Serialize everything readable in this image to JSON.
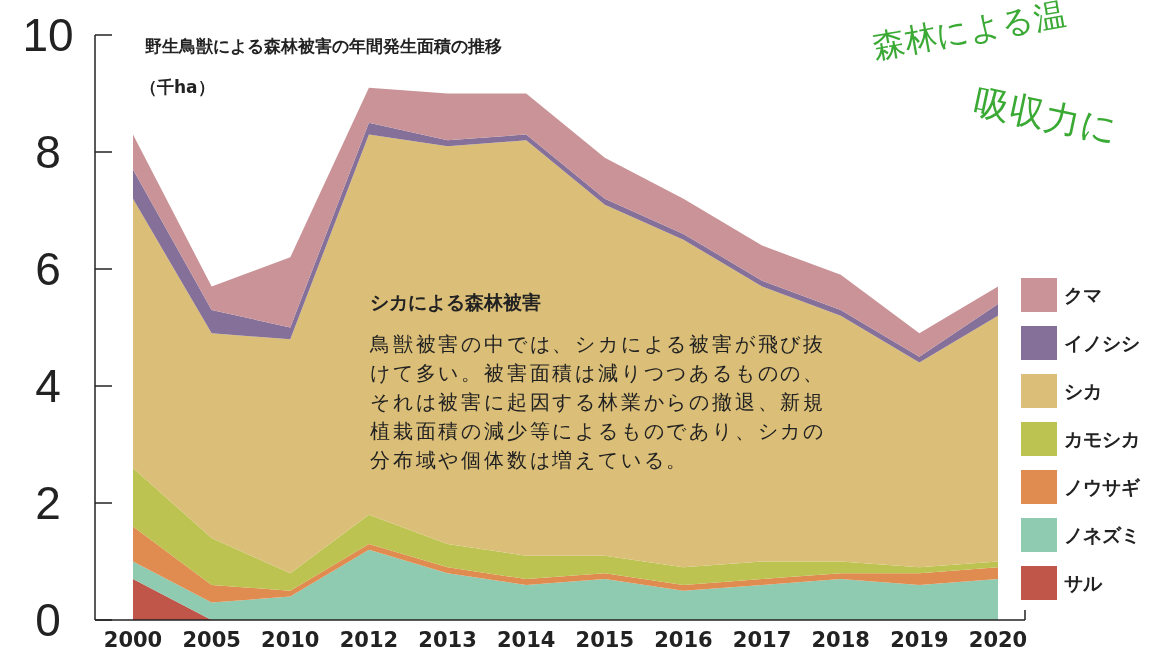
{
  "chart_data": {
    "type": "area",
    "stacked": true,
    "title": "野生鳥獣による森林被害の年間発生面積の推移",
    "ylabel": "（千ha）",
    "categories": [
      "2000",
      "2005",
      "2010",
      "2012",
      "2013",
      "2014",
      "2015",
      "2016",
      "2017",
      "2018",
      "2019",
      "2020"
    ],
    "series": [
      {
        "name": "サル",
        "color": "#c0564a",
        "values": [
          0.7,
          0,
          0,
          0,
          0,
          0,
          0,
          0,
          0,
          0,
          0,
          0
        ]
      },
      {
        "name": "ノネズミ",
        "color": "#8ecbb0",
        "values": [
          0.3,
          0.3,
          0.4,
          1.2,
          0.8,
          0.6,
          0.7,
          0.5,
          0.6,
          0.7,
          0.6,
          0.7
        ]
      },
      {
        "name": "ノウサギ",
        "color": "#e08b50",
        "values": [
          0.6,
          0.3,
          0.1,
          0.1,
          0.1,
          0.1,
          0.1,
          0.1,
          0.1,
          0.1,
          0.2,
          0.2
        ]
      },
      {
        "name": "カモシカ",
        "color": "#bcc350",
        "values": [
          1.0,
          0.8,
          0.3,
          0.5,
          0.4,
          0.4,
          0.3,
          0.3,
          0.3,
          0.2,
          0.1,
          0.1
        ]
      },
      {
        "name": "シカ",
        "color": "#dbbf78",
        "values": [
          4.6,
          3.5,
          4.0,
          6.5,
          6.8,
          7.1,
          6.0,
          5.6,
          4.7,
          4.2,
          3.5,
          4.2
        ]
      },
      {
        "name": "イノシシ",
        "color": "#85709a",
        "values": [
          0.5,
          0.4,
          0.2,
          0.2,
          0.1,
          0.1,
          0.1,
          0.1,
          0.1,
          0.1,
          0.1,
          0.2
        ]
      },
      {
        "name": "クマ",
        "color": "#c99397",
        "values": [
          0.6,
          0.4,
          1.2,
          0.6,
          0.8,
          0.7,
          0.7,
          0.6,
          0.6,
          0.6,
          0.4,
          0.3
        ]
      }
    ],
    "ylim": [
      0,
      10
    ],
    "yticks": [
      0,
      2,
      4,
      6,
      8,
      10
    ],
    "legend": "right",
    "grid": false,
    "annotations": [
      "シカによる森林被害",
      "鳥獣被害の中では、シカによる被害が飛び抜けて多い。被害面積は減りつつあるものの、それは被害に起因する林業からの撤退、新規植栽面積の減少等によるものであり、シカの分布域や個体数は増えている。",
      "森林による温",
      "吸収力に"
    ]
  }
}
